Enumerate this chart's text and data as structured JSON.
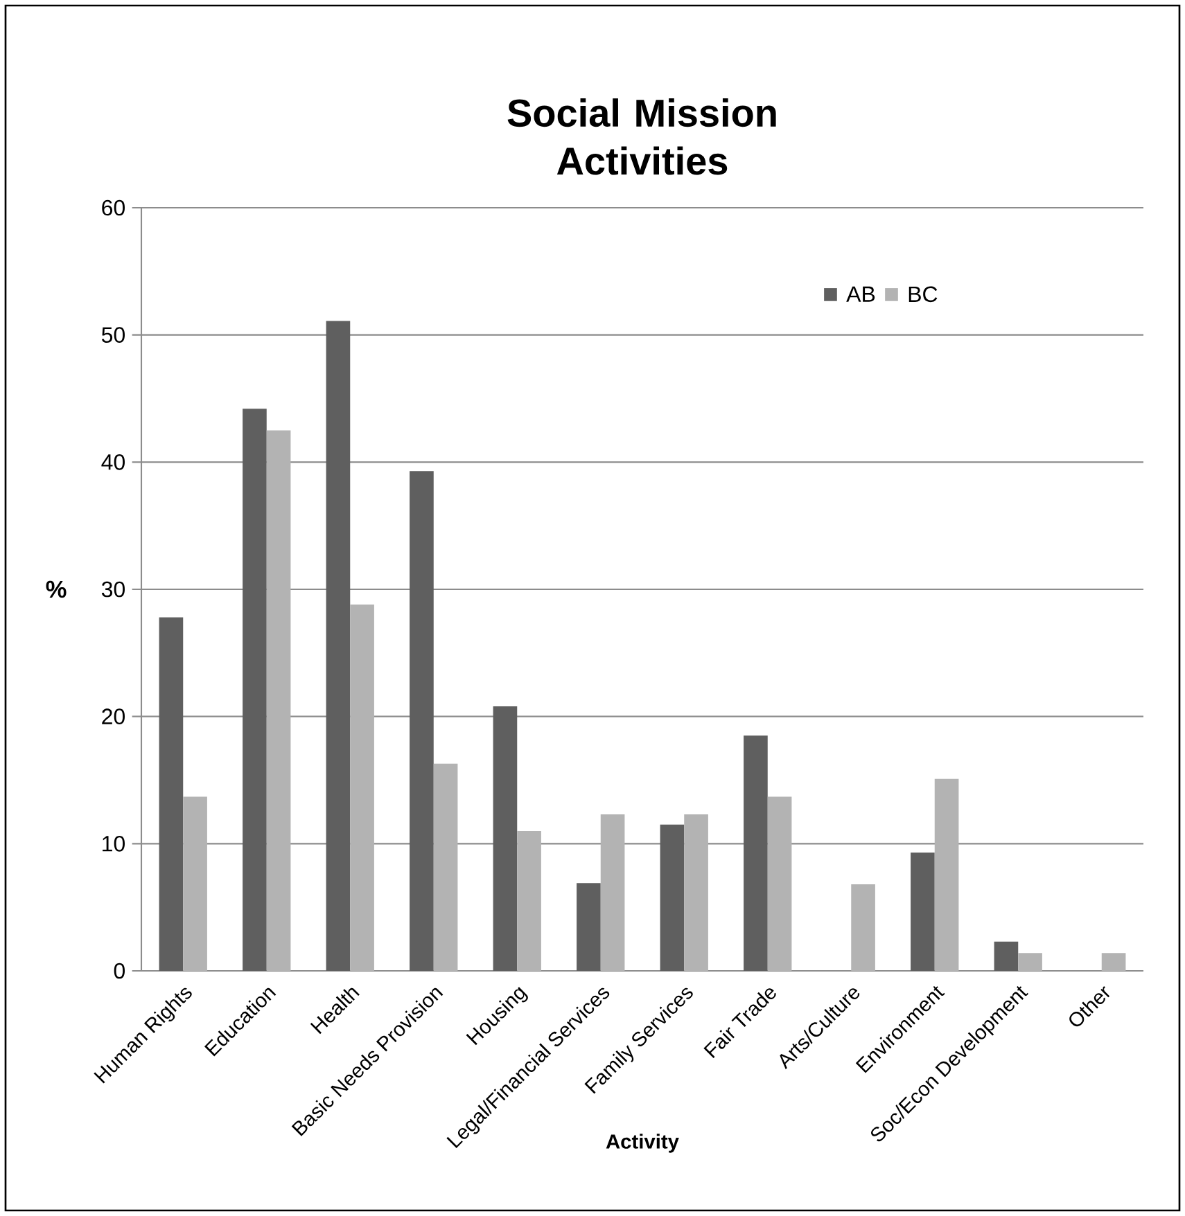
{
  "chart_data": {
    "type": "bar",
    "title": "Social Mission Activities",
    "xlabel": "Activity",
    "ylabel": "%",
    "categories": [
      "Human Rights",
      "Education",
      "Health",
      "Basic Needs Provision",
      "Housing",
      "Legal/Financial Services",
      "Family Services",
      "Fair Trade",
      "Arts/Culture",
      "Environment",
      "Soc/Econ Development",
      "Other"
    ],
    "series": [
      {
        "name": "AB",
        "color": "#5f5f5f",
        "values": [
          27.8,
          44.2,
          51.1,
          39.3,
          20.8,
          6.9,
          11.5,
          18.5,
          0,
          9.3,
          2.3,
          0
        ]
      },
      {
        "name": "BC",
        "color": "#b3b3b3",
        "values": [
          13.7,
          42.5,
          28.8,
          16.3,
          11.0,
          12.3,
          12.3,
          13.7,
          6.8,
          15.1,
          1.4,
          1.4
        ]
      }
    ],
    "ylim": [
      0,
      60
    ],
    "yticks": [
      0,
      10,
      20,
      30,
      40,
      50,
      60
    ],
    "grid": "y",
    "legend": "top right"
  }
}
